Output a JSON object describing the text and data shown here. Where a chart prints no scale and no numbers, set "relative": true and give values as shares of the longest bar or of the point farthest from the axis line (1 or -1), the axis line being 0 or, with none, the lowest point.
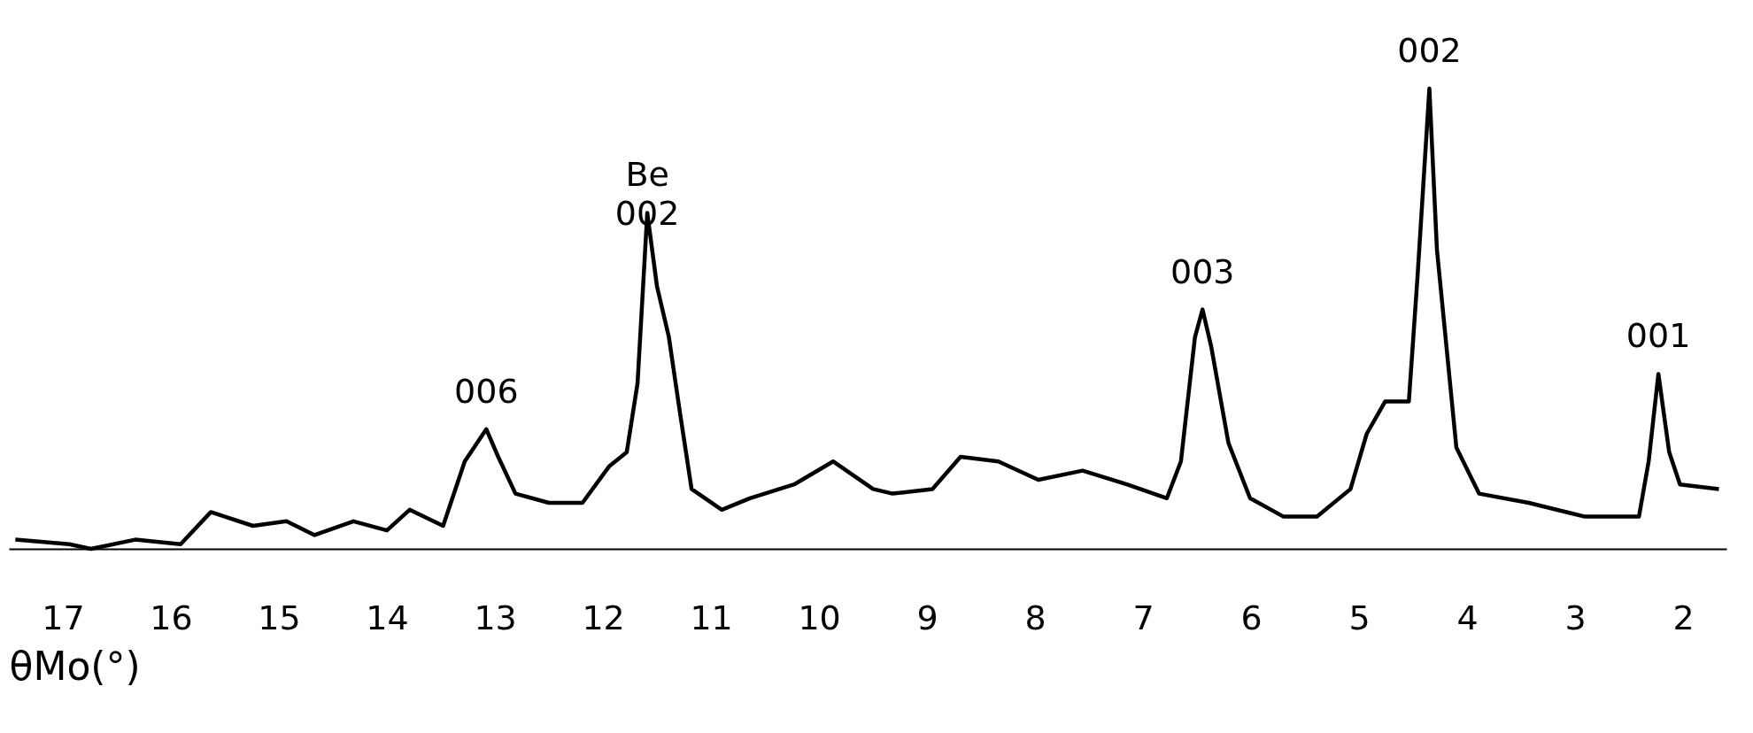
{
  "chart_data": {
    "type": "line",
    "relative": true,
    "xlabel": "θMo(°)",
    "xlim": [
      17.5,
      1.6
    ],
    "xticks": [
      17,
      16,
      15,
      14,
      13,
      12,
      11,
      10,
      9,
      8,
      7,
      6,
      5,
      4,
      3,
      2
    ],
    "grid": false,
    "marker": "none",
    "line_style": "solid",
    "series": [
      {
        "color": "#000000",
        "x": [
          17.44,
          16.94,
          16.74,
          16.33,
          15.91,
          15.63,
          15.5,
          15.24,
          14.93,
          14.67,
          14.31,
          14.0,
          13.79,
          13.48,
          13.28,
          13.08,
          12.97,
          12.81,
          12.5,
          12.19,
          11.94,
          11.78,
          11.68,
          11.59,
          11.5,
          11.39,
          11.29,
          11.18,
          10.9,
          10.64,
          10.23,
          9.87,
          9.5,
          9.32,
          8.95,
          8.69,
          8.34,
          7.97,
          7.56,
          7.15,
          6.78,
          6.65,
          6.52,
          6.45,
          6.37,
          6.21,
          6.01,
          5.7,
          5.39,
          5.08,
          4.93,
          4.76,
          4.54,
          4.46,
          4.35,
          4.28,
          4.1,
          3.89,
          3.43,
          2.91,
          2.41,
          2.32,
          2.23,
          2.13,
          2.03,
          1.67
        ],
        "values": [
          0.02,
          0.01,
          0.0,
          0.02,
          0.01,
          0.08,
          0.07,
          0.05,
          0.06,
          0.03,
          0.06,
          0.04,
          0.085,
          0.05,
          0.19,
          0.26,
          0.2,
          0.12,
          0.1,
          0.1,
          0.18,
          0.21,
          0.36,
          0.73,
          0.57,
          0.46,
          0.3,
          0.13,
          0.085,
          0.11,
          0.14,
          0.19,
          0.13,
          0.12,
          0.13,
          0.2,
          0.19,
          0.15,
          0.17,
          0.14,
          0.11,
          0.19,
          0.46,
          0.52,
          0.44,
          0.23,
          0.11,
          0.07,
          0.07,
          0.13,
          0.25,
          0.32,
          0.32,
          0.59,
          1.0,
          0.65,
          0.22,
          0.12,
          0.1,
          0.07,
          0.07,
          0.19,
          0.38,
          0.21,
          0.14,
          0.13
        ]
      }
    ],
    "annotations": [
      {
        "text": "006",
        "x": 13.08,
        "y": 0.26
      },
      {
        "text": "Be\n002",
        "x": 11.59,
        "y": 0.73
      },
      {
        "text": "003",
        "x": 6.45,
        "y": 0.52
      },
      {
        "text": "002",
        "x": 4.35,
        "y": 1.0
      },
      {
        "text": "001",
        "x": 2.23,
        "y": 0.38
      }
    ]
  }
}
